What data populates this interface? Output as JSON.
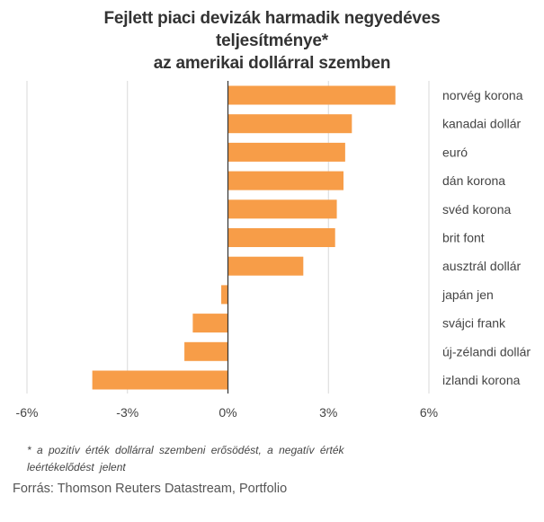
{
  "title_lines": [
    "Fejlett piaci devizák harmadik negyedéves",
    "teljesítménye*",
    "az amerikai dollárral szemben"
  ],
  "footnote": "* a pozitív érték dollárral szembeni erősödést, a negatív érték leértékelődést jelent",
  "source": "Forrás: Thomson Reuters Datastream, Portfolio",
  "colors": {
    "bar": "#F79D48",
    "grid": "#d9d9d9",
    "axis": "#333333",
    "text": "#444444"
  },
  "chart_data": {
    "type": "bar",
    "orientation": "horizontal",
    "categories": [
      "norvég korona",
      "kanadai dollár",
      "euró",
      "dán korona",
      "svéd korona",
      "brit font",
      "ausztrál dollár",
      "japán jen",
      "svájci frank",
      "új-zélandi dollár",
      "izlandi korona"
    ],
    "values": [
      5.0,
      3.7,
      3.5,
      3.45,
      3.25,
      3.2,
      2.25,
      -0.2,
      -1.05,
      -1.3,
      -4.05
    ],
    "xlim": [
      -6,
      6
    ],
    "xticks": [
      -6,
      -3,
      0,
      3,
      6
    ],
    "xtick_labels": [
      "-6%",
      "-3%",
      "0%",
      "3%",
      "6%"
    ],
    "grid": true,
    "xlabel": "",
    "ylabel": ""
  }
}
